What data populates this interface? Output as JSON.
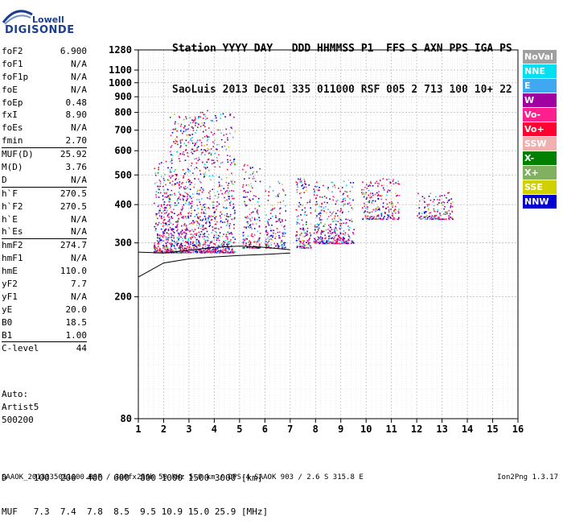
{
  "logo": {
    "line1": "Lowell",
    "line2": "DIGISONDE"
  },
  "header": {
    "labels": [
      "Station",
      "YYYY",
      "DAY",
      "DDD",
      "HHMMSS",
      "P1",
      "FFS",
      "S",
      "AXN",
      "PPS",
      "IGA",
      "PS"
    ],
    "values": [
      "SaoLuis",
      "2013",
      "Dec01",
      "335",
      "011000",
      "RSF",
      "005",
      "2",
      "713",
      "100",
      "10+",
      "22"
    ]
  },
  "params": [
    {
      "name": "foF2",
      "value": "6.900"
    },
    {
      "name": "foF1",
      "value": "N/A"
    },
    {
      "name": "foF1p",
      "value": "N/A"
    },
    {
      "name": "foE",
      "value": "N/A"
    },
    {
      "name": "foEp",
      "value": "0.48"
    },
    {
      "name": "fxI",
      "value": "8.90"
    },
    {
      "name": "foEs",
      "value": "N/A"
    },
    {
      "name": "fmin",
      "value": "2.70",
      "sep_after": true
    },
    {
      "name": "MUF(D)",
      "value": "25.92"
    },
    {
      "name": "M(D)",
      "value": "3.76"
    },
    {
      "name": "D",
      "value": "N/A",
      "sep_after": true
    },
    {
      "name": "h`F",
      "value": "270.5"
    },
    {
      "name": "h`F2",
      "value": "270.5"
    },
    {
      "name": "h`E",
      "value": "N/A"
    },
    {
      "name": "h`Es",
      "value": "N/A",
      "sep_after": true
    },
    {
      "name": "hmF2",
      "value": "274.7"
    },
    {
      "name": "hmF1",
      "value": "N/A"
    },
    {
      "name": "hmE",
      "value": "110.0"
    },
    {
      "name": "yF2",
      "value": "7.7"
    },
    {
      "name": "yF1",
      "value": "N/A"
    },
    {
      "name": "yE",
      "value": "20.0"
    },
    {
      "name": "B0",
      "value": "18.5"
    },
    {
      "name": "B1",
      "value": "1.00",
      "sep_after": true
    },
    {
      "name": "C-level",
      "value": "44",
      "sep_after": true
    }
  ],
  "auto": {
    "line1": "Auto:",
    "line2": "Artist5",
    "line3": "500200"
  },
  "legend": [
    {
      "label": "NoVal",
      "color": "#a0a0a0"
    },
    {
      "label": "NNE",
      "color": "#00e0f0"
    },
    {
      "label": "E",
      "color": "#40a8f0"
    },
    {
      "label": "W",
      "color": "#a000a0"
    },
    {
      "label": "Vo-",
      "color": "#ff2090"
    },
    {
      "label": "Vo+",
      "color": "#ff0030"
    },
    {
      "label": "SSW",
      "color": "#f0b0b0"
    },
    {
      "label": "X-",
      "color": "#008000"
    },
    {
      "label": "X+",
      "color": "#80b060"
    },
    {
      "label": "SSE",
      "color": "#d0d000"
    },
    {
      "label": "NNW",
      "color": "#0000d0"
    }
  ],
  "footer": {
    "d_line": "D     100  200  400  600  800 1000 1500 3000 [km]",
    "muf_line": "MUF   7.3  7.4  7.8  8.5  9.5 10.9 15.0 25.9 [MHz]",
    "file_line": "SAAOK_2013335011000.RSF / 300fx256h 50 kHz 5.0 km / DPS-4 SAAOK 903 / 2.6 S 315.8 E",
    "version": "Ion2Png 1.3.17"
  },
  "chart_data": {
    "type": "scatter",
    "x_ticks": [
      "1",
      "2",
      "3",
      "4",
      "5",
      "6",
      "7",
      "8",
      "9",
      "10",
      "11",
      "12",
      "13",
      "14",
      "15",
      "16"
    ],
    "y_ticks": [
      "80",
      "200",
      "300",
      "400",
      "500",
      "600",
      "700",
      "800",
      "900",
      "1000",
      "1100",
      "1280"
    ],
    "xlim": [
      1,
      16
    ],
    "ylim": [
      80,
      1280
    ],
    "y_scale": "log",
    "grid": true,
    "legend_position": "right",
    "clusters": [
      {
        "f": [
          1.6,
          2.2
        ],
        "h": [
          280,
          560
        ],
        "n": 260
      },
      {
        "f": [
          2.2,
          3.0
        ],
        "h": [
          280,
          800
        ],
        "n": 420
      },
      {
        "f": [
          3.0,
          3.8
        ],
        "h": [
          280,
          820
        ],
        "n": 420
      },
      {
        "f": [
          3.8,
          4.8
        ],
        "h": [
          280,
          800
        ],
        "n": 380
      },
      {
        "f": [
          5.1,
          5.8
        ],
        "h": [
          290,
          560
        ],
        "n": 170
      },
      {
        "f": [
          6.0,
          6.8
        ],
        "h": [
          290,
          480
        ],
        "n": 150
      },
      {
        "f": [
          7.2,
          7.8
        ],
        "h": [
          290,
          500
        ],
        "n": 150
      },
      {
        "f": [
          7.9,
          8.8
        ],
        "h": [
          300,
          480
        ],
        "n": 230
      },
      {
        "f": [
          8.8,
          9.5
        ],
        "h": [
          300,
          490
        ],
        "n": 150
      },
      {
        "f": [
          9.8,
          11.3
        ],
        "h": [
          360,
          490
        ],
        "n": 220
      },
      {
        "f": [
          12.0,
          13.4
        ],
        "h": [
          360,
          440
        ],
        "n": 140
      }
    ],
    "traces": [
      {
        "name": "lower",
        "points": [
          [
            1,
            232
          ],
          [
            2,
            258
          ],
          [
            3,
            266
          ],
          [
            4,
            270
          ],
          [
            5,
            273
          ],
          [
            6,
            275
          ],
          [
            7,
            278
          ]
        ]
      },
      {
        "name": "upper",
        "points": [
          [
            1,
            280
          ],
          [
            2,
            278
          ],
          [
            3,
            284
          ],
          [
            4,
            290
          ],
          [
            5,
            293
          ],
          [
            6,
            290
          ],
          [
            7,
            285
          ]
        ]
      }
    ]
  }
}
